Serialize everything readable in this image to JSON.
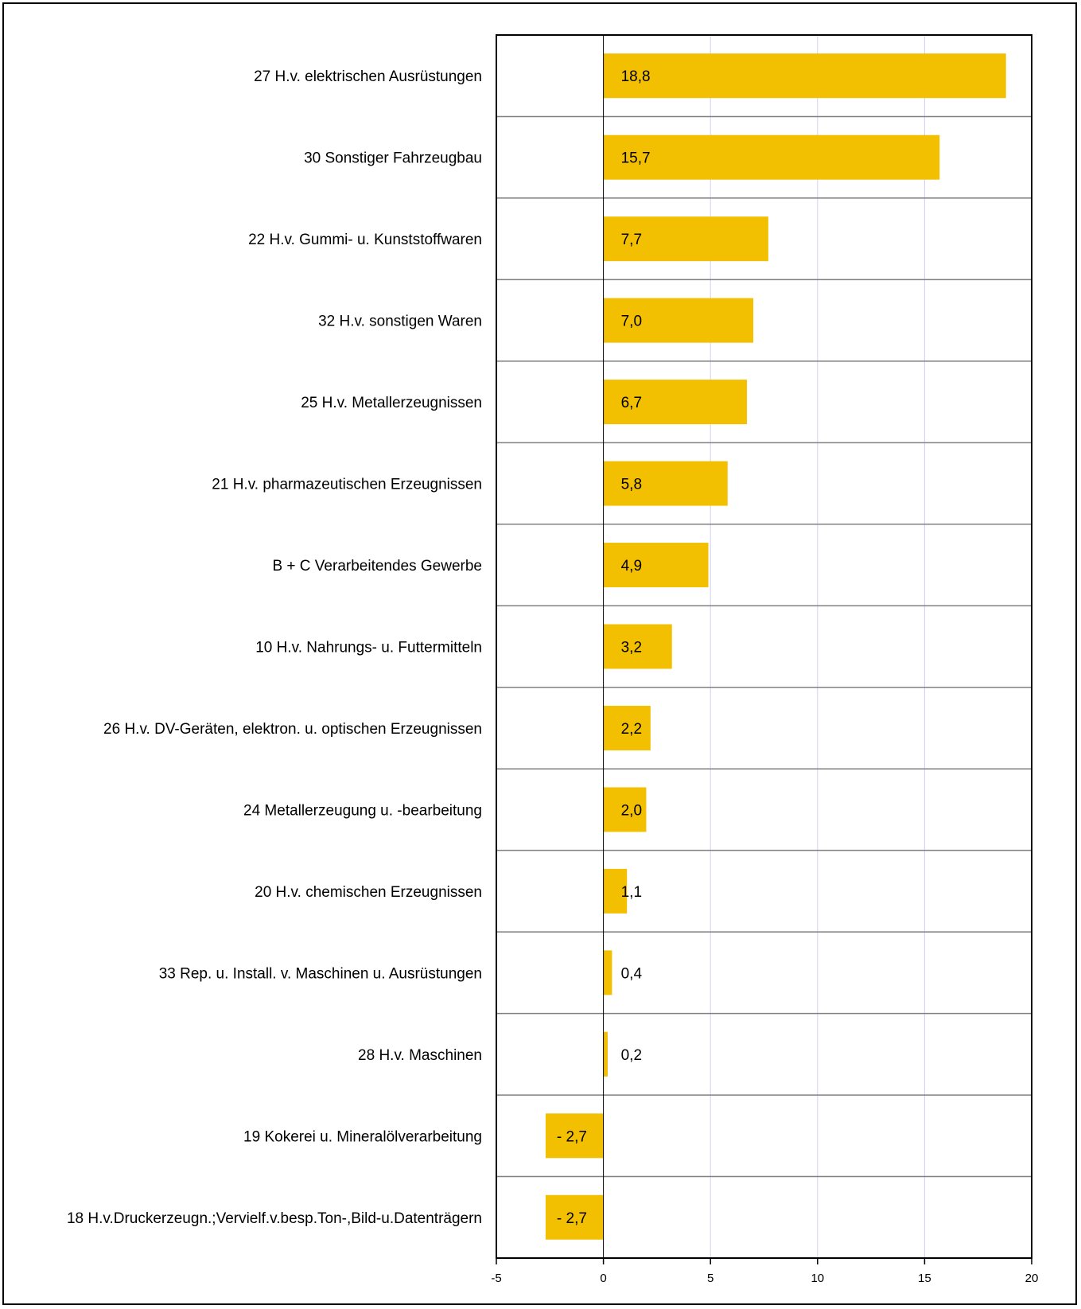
{
  "chart_data": {
    "type": "bar",
    "orientation": "horizontal",
    "categories": [
      "27 H.v. elektrischen Ausrüstungen",
      "30 Sonstiger Fahrzeugbau",
      "22 H.v. Gummi- u. Kunststoffwaren",
      "32 H.v. sonstigen Waren",
      "25 H.v. Metallerzeugnissen",
      "21 H.v. pharmazeutischen Erzeugnissen",
      "B + C Verarbeitendes Gewerbe",
      "10 H.v. Nahrungs- u. Futtermitteln",
      "26 H.v. DV-Geräten, elektron. u. optischen Erzeugnissen",
      "24 Metallerzeugung u. -bearbeitung",
      "20 H.v. chemischen Erzeugnissen",
      "33 Rep. u. Install. v. Maschinen u. Ausrüstungen",
      "28 H.v. Maschinen",
      "19 Kokerei u. Mineralölverarbeitung",
      "18 H.v.Druckerzeugn.;Vervielf.v.besp.Ton-,Bild-u.Datenträgern"
    ],
    "values": [
      18.8,
      15.7,
      7.7,
      7.0,
      6.7,
      5.8,
      4.9,
      3.2,
      2.2,
      2.0,
      1.1,
      0.4,
      0.2,
      -2.7,
      -2.7
    ],
    "data_labels": [
      "18,8",
      "15,7",
      "7,7",
      "7,0",
      "6,7",
      "5,8",
      "4,9",
      "3,2",
      "2,2",
      "2,0",
      "1,1",
      "0,4",
      "0,2",
      "- 2,7",
      "- 2,7"
    ],
    "xlim": [
      -5,
      20
    ],
    "xticks": [
      -5,
      0,
      5,
      10,
      15,
      20
    ],
    "xtick_labels": [
      "-5",
      "0",
      "5",
      "10",
      "15",
      "20"
    ],
    "bar_color": "#F2C000",
    "grid_color": "#D0D0F0",
    "grid": true,
    "title": "",
    "xlabel": "",
    "ylabel": ""
  }
}
